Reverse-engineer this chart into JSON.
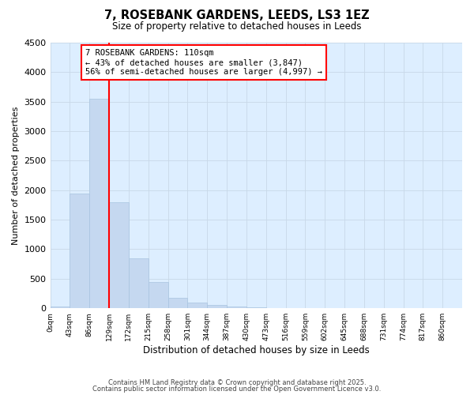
{
  "title": "7, ROSEBANK GARDENS, LEEDS, LS3 1EZ",
  "subtitle": "Size of property relative to detached houses in Leeds",
  "xlabel": "Distribution of detached houses by size in Leeds",
  "ylabel": "Number of detached properties",
  "bar_values": [
    30,
    1950,
    3550,
    1800,
    850,
    450,
    175,
    100,
    60,
    30,
    10,
    0,
    0,
    0,
    0,
    0,
    0,
    0,
    0,
    0
  ],
  "bar_labels": [
    "0sqm",
    "43sqm",
    "86sqm",
    "129sqm",
    "172sqm",
    "215sqm",
    "258sqm",
    "301sqm",
    "344sqm",
    "387sqm",
    "430sqm",
    "473sqm",
    "516sqm",
    "559sqm",
    "602sqm",
    "645sqm",
    "688sqm",
    "731sqm",
    "774sqm",
    "817sqm",
    "860sqm"
  ],
  "bar_color": "#c5d8f0",
  "bar_edgecolor": "#a8c4e0",
  "vline_x": 3.0,
  "vline_color": "red",
  "ylim": [
    0,
    4500
  ],
  "yticks": [
    0,
    500,
    1000,
    1500,
    2000,
    2500,
    3000,
    3500,
    4000,
    4500
  ],
  "annotation_title": "7 ROSEBANK GARDENS: 110sqm",
  "annotation_line1": "← 43% of detached houses are smaller (3,847)",
  "annotation_line2": "56% of semi-detached houses are larger (4,997) →",
  "annotation_box_color": "red",
  "footer1": "Contains HM Land Registry data © Crown copyright and database right 2025.",
  "footer2": "Contains public sector information licensed under the Open Government Licence v3.0.",
  "plot_bg_color": "#ddeeff",
  "fig_bg_color": "#ffffff",
  "grid_color": "#c8d8e8"
}
